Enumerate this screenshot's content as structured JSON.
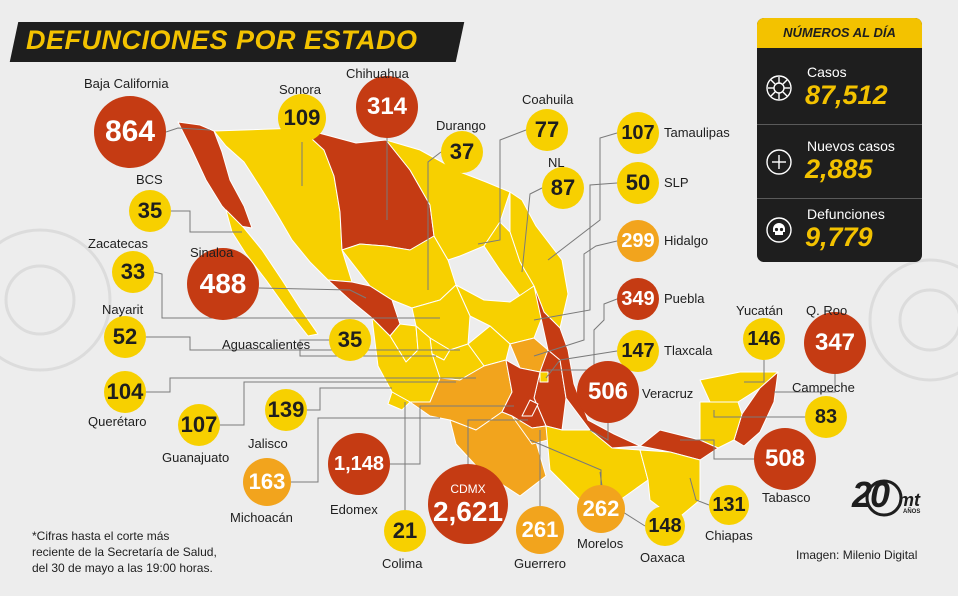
{
  "title": "DEFUNCIONES POR ESTADO",
  "colors": {
    "high": "#c53b13",
    "mid": "#f2a41d",
    "low": "#f7d000",
    "dark": "#1e1e1e",
    "accent": "#f3c200",
    "line": "#7a7a7a"
  },
  "panel": {
    "header": "NÚMEROS AL DÍA",
    "stats": [
      {
        "label": "Casos",
        "value": "87,512",
        "icon": "virus-icon"
      },
      {
        "label": "Nuevos casos",
        "value": "2,885",
        "icon": "plus-circle-icon"
      },
      {
        "label": "Defunciones",
        "value": "9,779",
        "icon": "skull-icon"
      }
    ]
  },
  "states": [
    {
      "name": "Baja California",
      "value": "864",
      "level": "high"
    },
    {
      "name": "Sonora",
      "value": "109",
      "level": "low"
    },
    {
      "name": "Chihuahua",
      "value": "314",
      "level": "high"
    },
    {
      "name": "Durango",
      "value": "37",
      "level": "low"
    },
    {
      "name": "Coahuila",
      "value": "77",
      "level": "low"
    },
    {
      "name": "Tamaulipas",
      "value": "107",
      "level": "low"
    },
    {
      "name": "NL",
      "value": "87",
      "level": "low"
    },
    {
      "name": "SLP",
      "value": "50",
      "level": "low"
    },
    {
      "name": "Hidalgo",
      "value": "299",
      "level": "mid"
    },
    {
      "name": "BCS",
      "value": "35",
      "level": "low"
    },
    {
      "name": "Zacatecas",
      "value": "33",
      "level": "low"
    },
    {
      "name": "Sinaloa",
      "value": "488",
      "level": "high"
    },
    {
      "name": "Nayarit",
      "value": "52",
      "level": "low"
    },
    {
      "name": "Aguascalientes",
      "value": "35",
      "level": "low"
    },
    {
      "name": "Puebla",
      "value": "349",
      "level": "high"
    },
    {
      "name": "Tlaxcala",
      "value": "147",
      "level": "low"
    },
    {
      "name": "Yucatán",
      "value": "146",
      "level": "low"
    },
    {
      "name": "Q. Roo",
      "value": "347",
      "level": "high"
    },
    {
      "name": "Querétaro",
      "value": "104",
      "level": "low"
    },
    {
      "name": "Veracruz",
      "value": "506",
      "level": "high"
    },
    {
      "name": "Campeche",
      "value": "83",
      "level": "low"
    },
    {
      "name": "Guanajuato",
      "value": "107",
      "level": "low"
    },
    {
      "name": "Jalisco",
      "value": "139",
      "level": "low"
    },
    {
      "name": "Michoacán",
      "value": "163",
      "level": "mid"
    },
    {
      "name": "Edomex",
      "value": "1,148",
      "level": "high"
    },
    {
      "name": "CDMX",
      "value": "2,621",
      "level": "high"
    },
    {
      "name": "Tabasco",
      "value": "508",
      "level": "high"
    },
    {
      "name": "Colima",
      "value": "21",
      "level": "low"
    },
    {
      "name": "Guerrero",
      "value": "261",
      "level": "mid"
    },
    {
      "name": "Morelos",
      "value": "262",
      "level": "mid"
    },
    {
      "name": "Oaxaca",
      "value": "148",
      "level": "low"
    },
    {
      "name": "Chiapas",
      "value": "131",
      "level": "low"
    }
  ],
  "footnote": "*Cifras hasta el corte más\nreciente de la Secretaría de Salud,\ndel 30 de mayo a las 19:00 horas.",
  "credit": "Imagen: Milenio Digital",
  "logo": {
    "number": "20",
    "brand": "mt",
    "sub": "AÑOS"
  }
}
